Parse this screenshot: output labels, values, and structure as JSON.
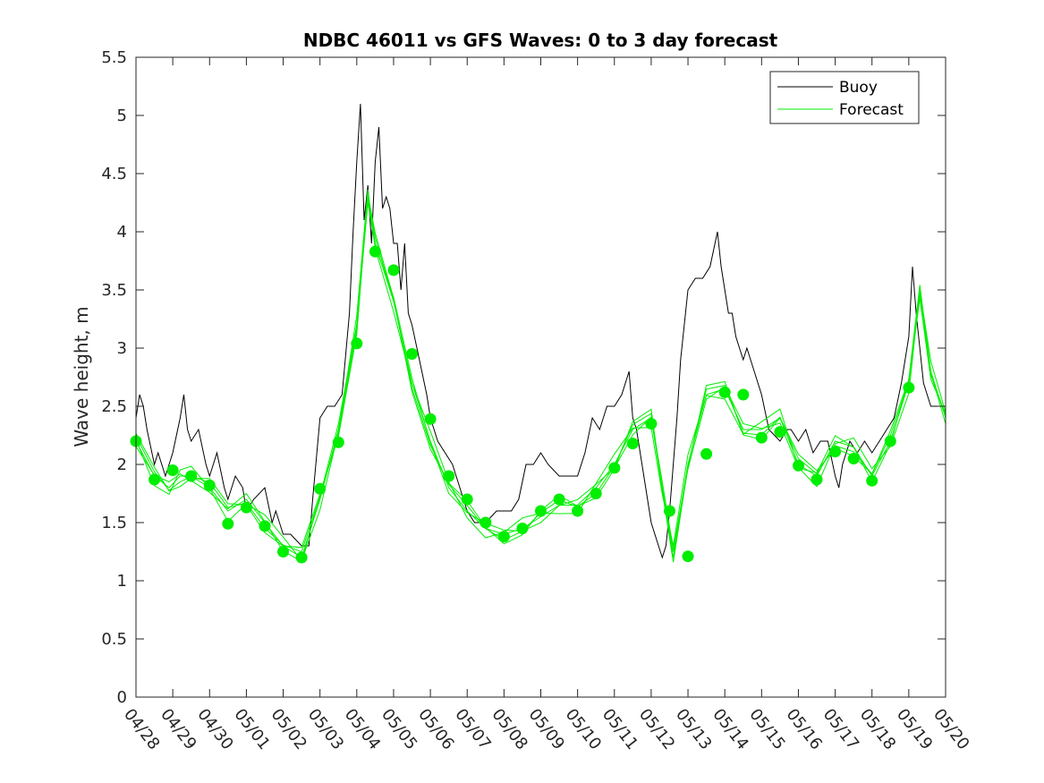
{
  "chart_data": {
    "type": "line",
    "title": "NDBC 46011 vs GFS Waves: 0 to 3 day forecast",
    "xlabel": "",
    "ylabel": "Wave height, m",
    "ylim": [
      0,
      5.5
    ],
    "yticks": [
      "0",
      "0.5",
      "1",
      "1.5",
      "2",
      "2.5",
      "3",
      "3.5",
      "4",
      "4.5",
      "5",
      "5.5"
    ],
    "xticks": [
      "04/28",
      "04/29",
      "04/30",
      "05/01",
      "05/02",
      "05/03",
      "05/04",
      "05/05",
      "05/06",
      "05/07",
      "05/08",
      "05/09",
      "05/10",
      "05/11",
      "05/12",
      "05/13",
      "05/14",
      "05/15",
      "05/16",
      "05/17",
      "05/18",
      "05/19",
      "05/20"
    ],
    "x_unit": "days since 04/28",
    "xlim": [
      0,
      22
    ],
    "grid": false,
    "legend": {
      "position": "top-right",
      "entries": [
        "Buoy",
        "Forecast"
      ]
    },
    "colors": {
      "buoy": "#000000",
      "forecast": "#00ee00"
    },
    "series": [
      {
        "name": "Buoy",
        "x": [
          0,
          0.1,
          0.2,
          0.3,
          0.5,
          0.6,
          0.8,
          1.0,
          1.2,
          1.3,
          1.4,
          1.5,
          1.7,
          1.9,
          2.0,
          2.2,
          2.4,
          2.5,
          2.7,
          2.9,
          3.0,
          3.2,
          3.5,
          3.7,
          3.8,
          4.0,
          4.2,
          4.5,
          4.7,
          4.8,
          5.0,
          5.2,
          5.4,
          5.6,
          5.8,
          5.9,
          6.0,
          6.1,
          6.2,
          6.3,
          6.4,
          6.5,
          6.6,
          6.7,
          6.8,
          6.9,
          7.0,
          7.1,
          7.2,
          7.3,
          7.4,
          7.5,
          7.7,
          7.9,
          8.0,
          8.2,
          8.4,
          8.6,
          8.8,
          9.0,
          9.2,
          9.5,
          9.8,
          10.0,
          10.2,
          10.4,
          10.6,
          10.8,
          11.0,
          11.2,
          11.5,
          11.8,
          12.0,
          12.2,
          12.4,
          12.6,
          12.8,
          13.0,
          13.2,
          13.4,
          13.5,
          13.6,
          13.7,
          13.8,
          13.9,
          14.0,
          14.1,
          14.2,
          14.3,
          14.4,
          14.5,
          14.6,
          14.7,
          14.8,
          15.0,
          15.2,
          15.4,
          15.6,
          15.8,
          15.9,
          16.0,
          16.1,
          16.2,
          16.3,
          16.4,
          16.5,
          16.6,
          16.8,
          17.0,
          17.2,
          17.5,
          17.7,
          17.8,
          18.0,
          18.2,
          18.4,
          18.6,
          18.8,
          19.0,
          19.1,
          19.2,
          19.4,
          19.6,
          19.8,
          20.0,
          20.2,
          20.4,
          20.6,
          20.8,
          21.0,
          21.1,
          21.2,
          21.4,
          21.6,
          21.8,
          22.0
        ],
        "y": [
          2.4,
          2.6,
          2.5,
          2.3,
          2.0,
          2.1,
          1.9,
          2.1,
          2.4,
          2.6,
          2.3,
          2.2,
          2.3,
          2.0,
          1.9,
          2.1,
          1.8,
          1.7,
          1.9,
          1.8,
          1.6,
          1.7,
          1.8,
          1.5,
          1.6,
          1.4,
          1.4,
          1.3,
          1.3,
          1.7,
          2.4,
          2.5,
          2.5,
          2.6,
          3.3,
          4.0,
          4.6,
          5.1,
          4.1,
          4.4,
          3.9,
          4.6,
          4.9,
          4.2,
          4.3,
          4.2,
          3.9,
          3.9,
          3.5,
          3.9,
          3.3,
          3.2,
          2.9,
          2.6,
          2.4,
          2.2,
          2.1,
          2.0,
          1.8,
          1.6,
          1.5,
          1.5,
          1.6,
          1.6,
          1.6,
          1.7,
          2.0,
          2.0,
          2.1,
          2.0,
          1.9,
          1.9,
          1.9,
          2.1,
          2.4,
          2.3,
          2.5,
          2.5,
          2.6,
          2.8,
          2.4,
          2.3,
          2.1,
          1.9,
          1.7,
          1.5,
          1.4,
          1.3,
          1.2,
          1.3,
          1.6,
          2.0,
          2.4,
          2.9,
          3.5,
          3.6,
          3.6,
          3.7,
          4.0,
          3.7,
          3.5,
          3.3,
          3.3,
          3.1,
          3.0,
          2.9,
          3.0,
          2.8,
          2.6,
          2.3,
          2.2,
          2.3,
          2.3,
          2.2,
          2.3,
          2.1,
          2.2,
          2.2,
          1.9,
          1.8,
          2.0,
          2.2,
          2.1,
          2.2,
          2.1,
          2.2,
          2.3,
          2.4,
          2.7,
          3.1,
          3.7,
          3.3,
          2.7,
          2.5,
          2.5,
          2.5
        ]
      },
      {
        "name": "Forecast",
        "x": [
          0,
          0.5,
          0.9,
          1.2,
          1.5,
          2.0,
          2.5,
          3.0,
          3.5,
          4.0,
          4.5,
          5.0,
          5.5,
          6.0,
          6.3,
          6.5,
          7.0,
          7.5,
          8.0,
          8.5,
          9.0,
          9.5,
          10.0,
          10.5,
          11.0,
          11.5,
          12.0,
          12.5,
          13.0,
          13.5,
          14.0,
          14.3,
          14.6,
          15.0,
          15.5,
          16.0,
          16.5,
          17.0,
          17.5,
          18.0,
          18.5,
          19.0,
          19.5,
          20.0,
          20.5,
          21.0,
          21.3,
          21.6,
          22.0
        ],
        "y": [
          2.2,
          1.9,
          1.8,
          1.9,
          1.9,
          1.8,
          1.6,
          1.7,
          1.5,
          1.3,
          1.2,
          1.7,
          2.3,
          3.2,
          4.3,
          3.9,
          3.4,
          2.7,
          2.2,
          1.8,
          1.6,
          1.45,
          1.4,
          1.45,
          1.55,
          1.65,
          1.65,
          1.8,
          2.0,
          2.3,
          2.4,
          1.8,
          1.25,
          2.0,
          2.6,
          2.65,
          2.3,
          2.3,
          2.4,
          2.0,
          1.9,
          2.2,
          2.15,
          1.9,
          2.2,
          2.7,
          3.5,
          2.8,
          2.4
        ]
      }
    ],
    "markers": {
      "series": "Forecast",
      "x": [
        0,
        0.5,
        1.0,
        1.5,
        2.0,
        2.5,
        3.0,
        3.5,
        4.0,
        4.5,
        5.0,
        5.5,
        6.0,
        6.5,
        7.0,
        7.5,
        8.0,
        8.5,
        9.0,
        9.5,
        10.0,
        10.5,
        11.0,
        11.5,
        12.0,
        12.5,
        13.0,
        13.5,
        14.0,
        14.5,
        15.0,
        15.5,
        16.0,
        16.5,
        17.0,
        17.5,
        18.0,
        18.5,
        19.0,
        19.5,
        20.0,
        20.5,
        21.0
      ],
      "y": [
        2.2,
        1.87,
        1.95,
        1.9,
        1.82,
        1.49,
        1.63,
        1.47,
        1.25,
        1.2,
        1.79,
        2.19,
        3.04,
        3.83,
        3.67,
        2.95,
        2.39,
        1.9,
        1.7,
        1.5,
        1.38,
        1.45,
        1.6,
        1.7,
        1.6,
        1.75,
        1.97,
        2.18,
        2.35,
        1.6,
        1.21,
        2.09,
        2.62,
        2.6,
        2.23,
        2.28,
        1.99,
        1.87,
        2.11,
        2.05,
        1.86,
        2.2,
        2.66
      ]
    }
  }
}
